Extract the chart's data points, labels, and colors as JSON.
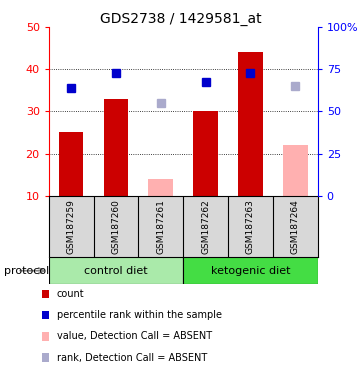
{
  "title": "GDS2738 / 1429581_at",
  "samples": [
    "GSM187259",
    "GSM187260",
    "GSM187261",
    "GSM187262",
    "GSM187263",
    "GSM187264"
  ],
  "count_values": [
    25,
    33,
    null,
    30,
    44,
    null
  ],
  "count_absent_values": [
    null,
    null,
    14,
    null,
    null,
    22
  ],
  "percentile_values": [
    35.5,
    39.0,
    null,
    37.0,
    39.0,
    null
  ],
  "percentile_absent_values": [
    null,
    null,
    32.0,
    null,
    null,
    36.0
  ],
  "ylim_left": [
    10,
    50
  ],
  "ylim_right": [
    0,
    100
  ],
  "yticks_left": [
    10,
    20,
    30,
    40,
    50
  ],
  "yticks_right": [
    0,
    25,
    50,
    75,
    100
  ],
  "ytick_labels_left": [
    "10",
    "20",
    "30",
    "40",
    "50"
  ],
  "ytick_labels_right": [
    "0",
    "25",
    "50",
    "75",
    "100%"
  ],
  "bar_color_present": "#cc0000",
  "bar_color_absent": "#ffb0b0",
  "square_color_present": "#0000cc",
  "square_color_absent": "#aaaacc",
  "bg_color": "#d8d8d8",
  "protocol_bg_control": "#aaeaaa",
  "protocol_bg_keto": "#44dd44",
  "legend_items": [
    {
      "color": "#cc0000",
      "label": "count"
    },
    {
      "color": "#0000cc",
      "label": "percentile rank within the sample"
    },
    {
      "color": "#ffb0b0",
      "label": "value, Detection Call = ABSENT"
    },
    {
      "color": "#aaaacc",
      "label": "rank, Detection Call = ABSENT"
    }
  ]
}
